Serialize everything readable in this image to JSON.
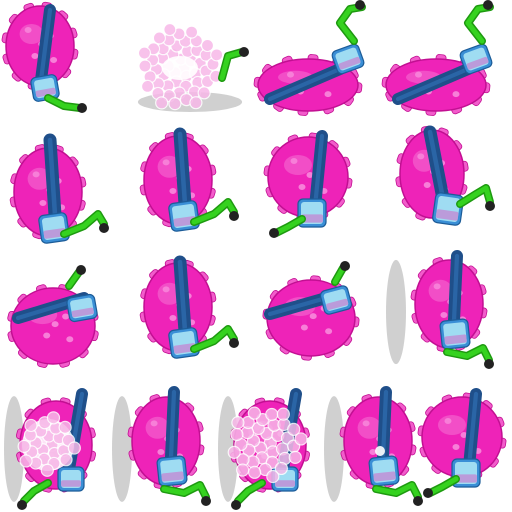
{
  "sprite_sheet": {
    "layout": "grid",
    "rows": 4,
    "frames_per_row": [
      4,
      4,
      4,
      5
    ],
    "frame_count": 17,
    "colors": {
      "body": "#ee23b8",
      "body_shade": "#c20f92",
      "spike": "#f25ccb",
      "spot": "#f77fd8",
      "strap": "#1f4f8a",
      "strap_light": "#2f6fb3",
      "mask_frame": "#3a8fd6",
      "mask_glass": "#9fdcf2",
      "snorkel": "#35d21f",
      "snorkel_dark": "#1e9a10",
      "snorkel_tip": "#222222",
      "shadow": "#c8c8c8",
      "bubble": "#f7b8e8"
    },
    "frames": [
      {
        "id": "r1-1",
        "pose": "upright-side",
        "effect": "none",
        "shadow": false
      },
      {
        "id": "r1-2",
        "pose": "bubble-ring",
        "effect": "bubbles",
        "shadow": true
      },
      {
        "id": "r1-3",
        "pose": "swim-left",
        "effect": "none",
        "shadow": false
      },
      {
        "id": "r1-4",
        "pose": "swim-left",
        "effect": "none",
        "shadow": false
      },
      {
        "id": "r2-1",
        "pose": "tilt-left",
        "effect": "none",
        "shadow": false
      },
      {
        "id": "r2-2",
        "pose": "tilt-left",
        "effect": "none",
        "shadow": false
      },
      {
        "id": "r2-3",
        "pose": "front",
        "effect": "none",
        "shadow": false
      },
      {
        "id": "r2-4",
        "pose": "tilt-right",
        "effect": "none",
        "shadow": false
      },
      {
        "id": "r3-1",
        "pose": "roll",
        "effect": "none",
        "shadow": false
      },
      {
        "id": "r3-2",
        "pose": "tilt-left",
        "effect": "none",
        "shadow": false
      },
      {
        "id": "r3-3",
        "pose": "roll-right",
        "effect": "none",
        "shadow": false
      },
      {
        "id": "r3-4",
        "pose": "wall-side",
        "effect": "none",
        "shadow": true
      },
      {
        "id": "r4-1",
        "pose": "wall-hit",
        "effect": "flash",
        "shadow": true
      },
      {
        "id": "r4-2",
        "pose": "wall-side",
        "effect": "none",
        "shadow": true
      },
      {
        "id": "r4-3",
        "pose": "wall-hit",
        "effect": "bubbles",
        "shadow": true
      },
      {
        "id": "r4-4",
        "pose": "wall-side",
        "effect": "sparkle",
        "shadow": true
      },
      {
        "id": "r4-5",
        "pose": "front",
        "effect": "none",
        "shadow": false
      }
    ]
  }
}
